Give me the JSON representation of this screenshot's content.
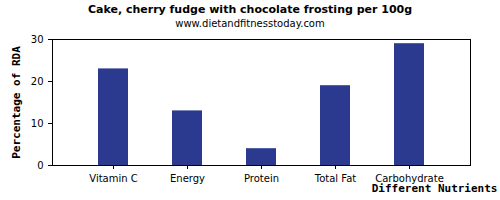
{
  "chart_data": {
    "type": "bar",
    "title": "Cake, cherry fudge with chocolate frosting per 100g",
    "subtitle": "www.dietandfitnesstoday.com",
    "x_label": "Different Nutrients",
    "y_label": "Percentage of RDA",
    "categories": [
      "Vitamin C",
      "Energy",
      "Protein",
      "Total Fat",
      "Carbohydrate"
    ],
    "values": [
      23,
      13,
      4,
      19,
      29
    ],
    "color": "#2b3a8f",
    "ylim": [
      0,
      30
    ],
    "yticks": [
      0,
      10,
      20,
      30
    ],
    "grid": false
  }
}
